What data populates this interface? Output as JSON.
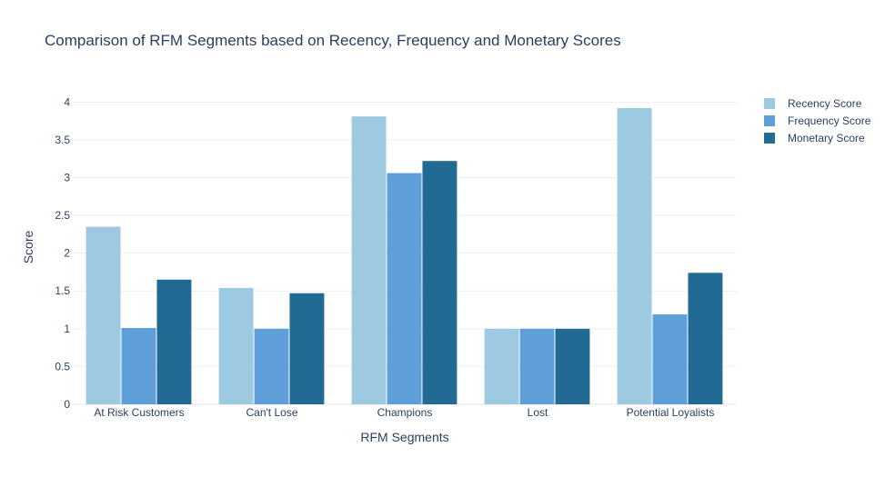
{
  "chart_data": {
    "type": "bar",
    "title": "Comparison of RFM Segments based on Recency, Frequency and Monetary Scores",
    "xlabel": "RFM Segments",
    "ylabel": "Score",
    "categories": [
      "At Risk Customers",
      "Can't Lose",
      "Champions",
      "Lost",
      "Potential Loyalists"
    ],
    "series": [
      {
        "name": "Recency Score",
        "color": "#9ecae1",
        "values": [
          2.35,
          1.54,
          3.81,
          1.0,
          3.92
        ]
      },
      {
        "name": "Frequency Score",
        "color": "#5f9fd9",
        "values": [
          1.01,
          1.0,
          3.06,
          1.0,
          1.19
        ]
      },
      {
        "name": "Monetary Score",
        "color": "#206a93",
        "values": [
          1.65,
          1.47,
          3.22,
          1.0,
          1.74
        ]
      }
    ],
    "ylim": [
      0,
      4.1
    ],
    "yticks": [
      0,
      0.5,
      1,
      1.5,
      2,
      2.5,
      3,
      3.5,
      4
    ],
    "ytick_labels": [
      "0",
      "0.5",
      "1",
      "1.5",
      "2",
      "2.5",
      "3",
      "3.5",
      "4"
    ],
    "grid": true,
    "legend_position": "top-right"
  }
}
